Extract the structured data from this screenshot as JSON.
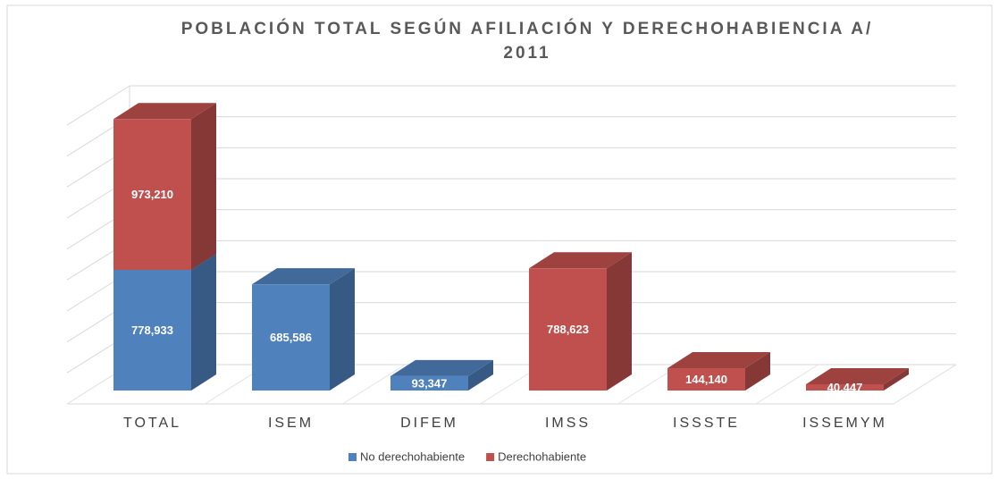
{
  "chart_data": {
    "type": "bar3d_stacked",
    "title": "POBLACIÓN TOTAL SEGÚN AFILIACIÓN Y DERECHOHABIENCIA A/",
    "subtitle": "2011",
    "categories": [
      "TOTAL",
      "ISEM",
      "DIFEM",
      "IMSS",
      "ISSSTE",
      "ISSEMYM"
    ],
    "series": [
      {
        "name": "No derechohabiente",
        "color": "#4f81bd",
        "values": [
          778933,
          685586,
          93347,
          null,
          null,
          null
        ],
        "value_labels": [
          "778,933",
          "685,586",
          "93,347",
          null,
          null,
          null
        ]
      },
      {
        "name": "Derechohabiente",
        "color": "#c0504d",
        "values": [
          973210,
          null,
          null,
          788623,
          144140,
          40447
        ],
        "value_labels": [
          "973,210",
          null,
          null,
          "788,623",
          "144,140",
          "40,447"
        ]
      }
    ],
    "ylim": [
      0,
      1800000
    ],
    "yticks": [
      0,
      200000,
      400000,
      600000,
      800000,
      1000000,
      1200000,
      1400000,
      1600000,
      1800000
    ],
    "grid": true,
    "legend": "bottom"
  }
}
